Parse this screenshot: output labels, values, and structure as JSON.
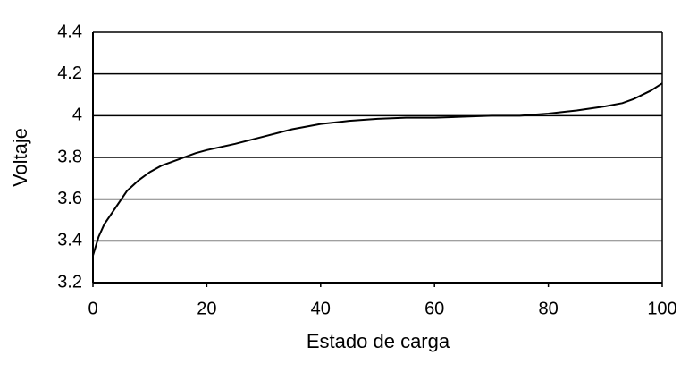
{
  "chart_data": {
    "type": "line",
    "x_label": "Estado de carga",
    "y_label": "Voltaje",
    "x": [
      0,
      1,
      2,
      4,
      6,
      8,
      10,
      12,
      15,
      18,
      20,
      25,
      30,
      35,
      40,
      45,
      50,
      55,
      60,
      65,
      70,
      75,
      80,
      85,
      90,
      93,
      95,
      98,
      100
    ],
    "series": [
      {
        "color": "#000000",
        "values": [
          3.33,
          3.42,
          3.48,
          3.56,
          3.64,
          3.69,
          3.73,
          3.76,
          3.79,
          3.82,
          3.835,
          3.865,
          3.9,
          3.935,
          3.96,
          3.975,
          3.985,
          3.99,
          3.99,
          3.995,
          4.0,
          4.0,
          4.01,
          4.025,
          4.045,
          4.06,
          4.08,
          4.12,
          4.155
        ]
      }
    ],
    "xlim": [
      0,
      100
    ],
    "xticks": [
      0,
      20,
      40,
      60,
      80,
      100
    ],
    "ylim": [
      3.2,
      4.4
    ],
    "yticks": [
      3.2,
      3.4,
      3.6,
      3.8,
      4,
      4.2,
      4.4
    ],
    "grid": true
  }
}
